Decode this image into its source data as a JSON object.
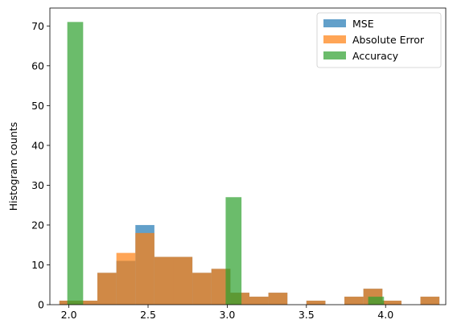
{
  "chart_data": {
    "type": "histogram",
    "title": "",
    "xlabel": "",
    "ylabel": "Histogram counts",
    "xlim": [
      1.88,
      4.38
    ],
    "ylim": [
      0,
      74.5
    ],
    "xticks": [
      2.0,
      2.5,
      3.0,
      3.5,
      4.0
    ],
    "xtick_labels": [
      "2.0",
      "2.5",
      "3.0",
      "3.5",
      "4.0"
    ],
    "yticks": [
      0,
      10,
      20,
      30,
      40,
      50,
      60,
      70
    ],
    "ytick_labels": [
      "0",
      "10",
      "20",
      "30",
      "40",
      "50",
      "60",
      "70"
    ],
    "grid": false,
    "legend_position": "top-right",
    "series": [
      {
        "name": "MSE",
        "color": "#1f77b4",
        "opacity": 0.7,
        "bins": [
          [
            1.94,
            2.06,
            1
          ],
          [
            2.06,
            2.18,
            1
          ],
          [
            2.18,
            2.3,
            8
          ],
          [
            2.3,
            2.42,
            11
          ],
          [
            2.42,
            2.54,
            20
          ],
          [
            2.54,
            2.66,
            12
          ],
          [
            2.66,
            2.78,
            12
          ],
          [
            2.78,
            2.9,
            8
          ],
          [
            2.9,
            3.02,
            9
          ],
          [
            3.02,
            3.14,
            3
          ],
          [
            3.14,
            3.26,
            2
          ],
          [
            3.26,
            3.38,
            3
          ],
          [
            3.5,
            3.62,
            1
          ],
          [
            3.74,
            3.86,
            2
          ],
          [
            3.86,
            3.98,
            4
          ],
          [
            3.98,
            4.1,
            1
          ],
          [
            4.22,
            4.34,
            2
          ]
        ]
      },
      {
        "name": "Absolute Error",
        "color": "#ff7f0e",
        "opacity": 0.7,
        "bins": [
          [
            1.94,
            2.06,
            1
          ],
          [
            2.06,
            2.18,
            1
          ],
          [
            2.18,
            2.3,
            8
          ],
          [
            2.3,
            2.42,
            13
          ],
          [
            2.42,
            2.54,
            18
          ],
          [
            2.54,
            2.66,
            12
          ],
          [
            2.66,
            2.78,
            12
          ],
          [
            2.78,
            2.9,
            8
          ],
          [
            2.9,
            3.02,
            9
          ],
          [
            3.02,
            3.14,
            3
          ],
          [
            3.14,
            3.26,
            2
          ],
          [
            3.26,
            3.38,
            3
          ],
          [
            3.5,
            3.62,
            1
          ],
          [
            3.74,
            3.86,
            2
          ],
          [
            3.86,
            3.98,
            4
          ],
          [
            3.98,
            4.1,
            1
          ],
          [
            4.22,
            4.34,
            2
          ]
        ]
      },
      {
        "name": "Accuracy",
        "color": "#2ca02c",
        "opacity": 0.7,
        "bins": [
          [
            1.99,
            2.09,
            71
          ],
          [
            2.99,
            3.09,
            27
          ],
          [
            3.89,
            3.99,
            2
          ]
        ]
      }
    ]
  }
}
